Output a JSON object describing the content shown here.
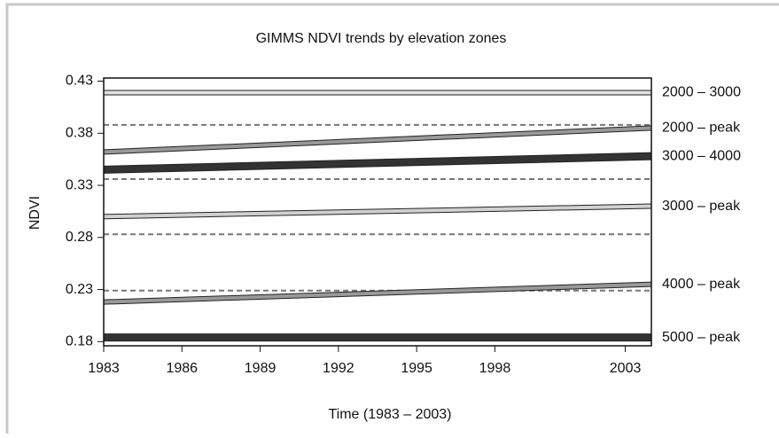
{
  "chart_data": {
    "type": "line",
    "title": "GIMMS NDVI trends by elevation zones",
    "x_label": "Time  (1983  –  2003)",
    "y_label": "NDVI",
    "x": [
      1983,
      2004
    ],
    "xlim": [
      1983,
      2004
    ],
    "xticks": [
      1983,
      1986,
      1989,
      1992,
      1995,
      1998,
      2003
    ],
    "ylim": [
      0.176,
      0.433
    ],
    "yticks": [
      0.43,
      0.38,
      0.33,
      0.28,
      0.23,
      0.18
    ],
    "reference_lines": [
      0.388,
      0.336,
      0.283,
      0.229
    ],
    "series": [
      {
        "name": "2000 – 3000",
        "color": "#e0e0e0",
        "values": [
          0.419,
          0.419
        ]
      },
      {
        "name": "2000 – peak",
        "color": "#999999",
        "values": [
          0.362,
          0.385
        ]
      },
      {
        "name": "3000 – 4000",
        "color": "#333333",
        "values": [
          0.345,
          0.358
        ]
      },
      {
        "name": "3000 – peak",
        "color": "#d0d0d0",
        "values": [
          0.3,
          0.31
        ]
      },
      {
        "name": "4000 – peak",
        "color": "#999999",
        "values": [
          0.218,
          0.235
        ]
      },
      {
        "name": "5000 – peak",
        "color": "#333333",
        "values": [
          0.184,
          0.184
        ]
      }
    ]
  }
}
